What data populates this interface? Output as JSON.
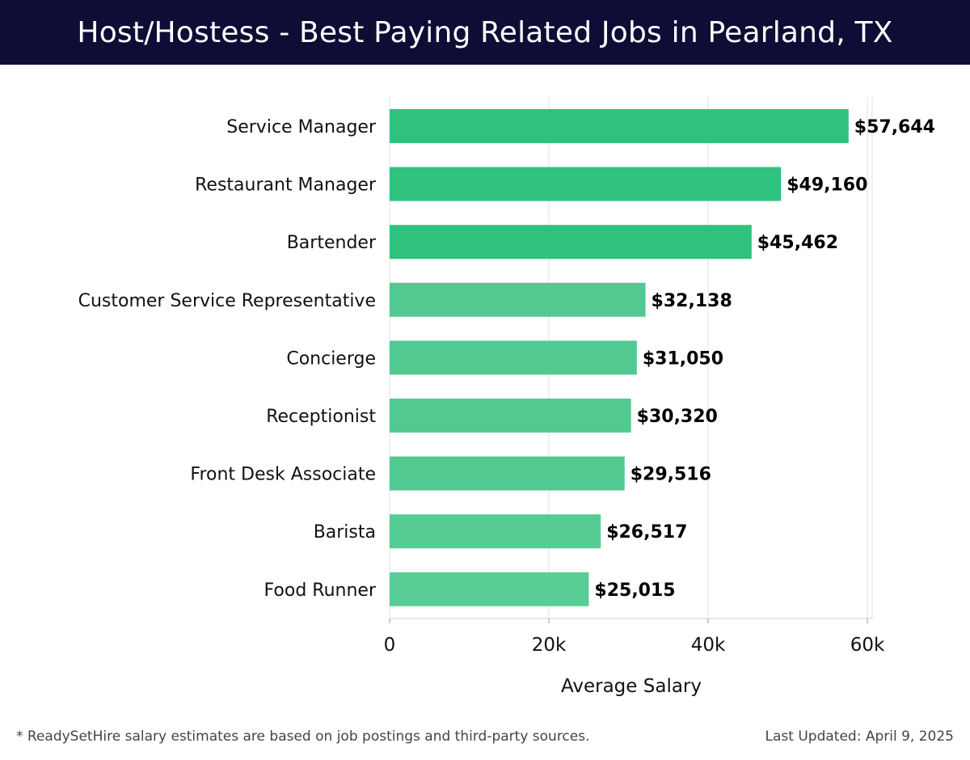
{
  "header": {
    "title": "Host/Hostess - Best Paying Related Jobs in Pearland, TX"
  },
  "chart_data": {
    "type": "bar",
    "orientation": "horizontal",
    "title": "Host/Hostess - Best Paying Related Jobs in Pearland, TX",
    "xlabel": "Average Salary",
    "ylabel": "",
    "xlim": [
      0,
      60000
    ],
    "xticks": [
      0,
      20000,
      40000,
      60000
    ],
    "xtick_labels": [
      "0",
      "20k",
      "40k",
      "60k"
    ],
    "grid": true,
    "categories": [
      "Service Manager",
      "Restaurant Manager",
      "Bartender",
      "Customer Service Representative",
      "Concierge",
      "Receptionist",
      "Front Desk Associate",
      "Barista",
      "Food Runner"
    ],
    "values": [
      57644,
      49160,
      45462,
      32138,
      31050,
      30320,
      29516,
      26517,
      25015
    ],
    "value_labels": [
      "$57,644",
      "$49,160",
      "$45,462",
      "$32,138",
      "$31,050",
      "$30,320",
      "$29,516",
      "$26,517",
      "$25,015"
    ],
    "bar_colors": [
      "#2ec27e",
      "#2ec27e",
      "#2ec27e",
      "#52c990",
      "#52c990",
      "#52c990",
      "#52c990",
      "#55cc93",
      "#58ce96"
    ]
  },
  "footer": {
    "note": "* ReadySetHire salary estimates are based on job postings and third-party sources.",
    "updated": "Last Updated: April 9, 2025"
  }
}
